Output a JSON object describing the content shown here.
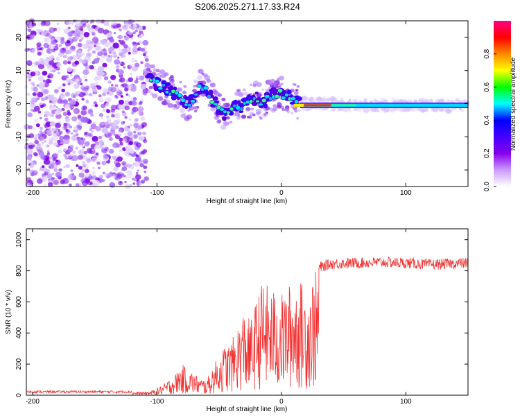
{
  "title": "S206.2025.271.17.33.R24",
  "chart_data": [
    {
      "type": "heatmap",
      "name": "spectrogram",
      "xlabel": "Height of straight line (km)",
      "ylabel": "Frequency (Hz)",
      "xlim": [
        -205,
        150
      ],
      "ylim": [
        -25,
        25
      ],
      "xticks": [
        "-200",
        "-100",
        "0",
        "100"
      ],
      "xtick_values": [
        -200,
        -100,
        0,
        100
      ],
      "yticks": [
        "-20",
        "-10",
        "0",
        "10",
        "20"
      ],
      "ytick_values": [
        -20,
        -10,
        0,
        10,
        20
      ],
      "ridge": {
        "x": [
          -108,
          -100,
          -90,
          -82,
          -75,
          -70,
          -65,
          -60,
          -55,
          -50,
          -45,
          -41,
          -38,
          -35,
          -30,
          -25,
          -20,
          -15,
          -10,
          -5,
          0,
          5,
          10,
          15,
          20,
          40,
          60,
          80,
          100,
          120,
          150
        ],
        "y": [
          9,
          6,
          4,
          2,
          0,
          2,
          5,
          4,
          1,
          -2,
          -3,
          -2,
          -1,
          -1,
          -0.5,
          1,
          2,
          0,
          2,
          3,
          3,
          2,
          1,
          0,
          0,
          0,
          -0.5,
          -0.5,
          -0.5,
          -0.5,
          -0.5
        ]
      }
    },
    {
      "type": "line",
      "name": "snr",
      "xlabel": "Height of straight line (km)",
      "ylabel": "SNR (10 * v/v)",
      "xlim": [
        -205,
        150
      ],
      "ylim": [
        0,
        1070
      ],
      "xticks": [
        "-200",
        "-100",
        "0",
        "100"
      ],
      "xtick_values": [
        -200,
        -100,
        0,
        100
      ],
      "yticks": [
        "0",
        "200",
        "400",
        "600",
        "800",
        "1000"
      ],
      "ytick_values": [
        0,
        200,
        400,
        600,
        800,
        1000
      ],
      "envelope": {
        "x": [
          -205,
          -120,
          -105,
          -95,
          -85,
          -80,
          -75,
          -70,
          -65,
          -60,
          -55,
          -45,
          -40,
          -35,
          -30,
          -25,
          -20,
          -15,
          -10,
          -5,
          0,
          5,
          10,
          15,
          20,
          25,
          30,
          40,
          60,
          80,
          100,
          120,
          150
        ],
        "y": [
          20,
          20,
          25,
          70,
          140,
          200,
          170,
          140,
          110,
          100,
          190,
          330,
          350,
          450,
          560,
          480,
          620,
          750,
          700,
          680,
          650,
          700,
          760,
          740,
          700,
          780,
          820,
          845,
          850,
          855,
          850,
          840,
          850
        ]
      }
    }
  ],
  "colorbar": {
    "label": "Normalized spectral amplitude",
    "ticks": [
      "0.0",
      "0.2",
      "0.4",
      "0.6",
      "0.8"
    ],
    "tick_values": [
      0.0,
      0.2,
      0.4,
      0.6,
      0.8
    ],
    "range": [
      0,
      1
    ],
    "colors": [
      "#ffffff",
      "#cc99ff",
      "#8800ee",
      "#4400ff",
      "#0000ff",
      "#00ffff",
      "#00ff00",
      "#ffff00",
      "#ff8800",
      "#ff0000",
      "#ff0088"
    ]
  },
  "line_color": "#f03030"
}
